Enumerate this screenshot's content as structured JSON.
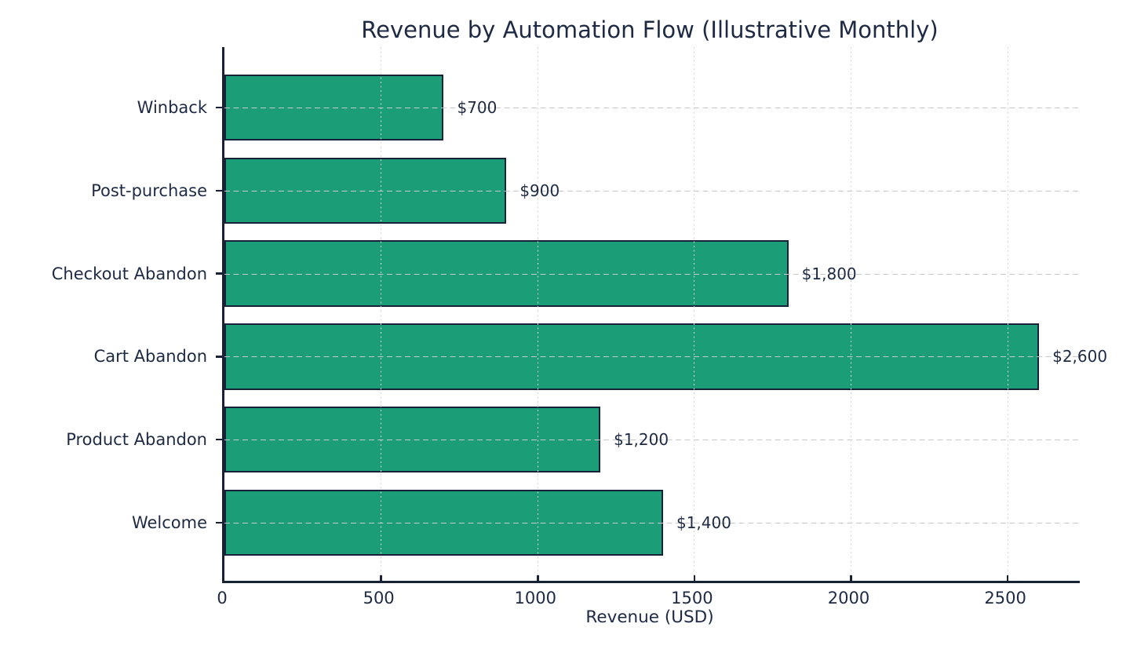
{
  "chart_data": {
    "type": "bar",
    "orientation": "horizontal",
    "title": "Revenue by Automation Flow (Illustrative Monthly)",
    "xlabel": "Revenue (USD)",
    "ylabel": "",
    "categories_top_to_bottom": [
      "Winback",
      "Post-purchase",
      "Checkout Abandon",
      "Cart Abandon",
      "Product Abandon",
      "Welcome"
    ],
    "values": [
      700,
      900,
      1800,
      2600,
      1200,
      1400
    ],
    "value_labels": [
      "$700",
      "$900",
      "$1,800",
      "$2,600",
      "$1,200",
      "$1,400"
    ],
    "x_ticks": [
      0,
      500,
      1000,
      1500,
      2000,
      2500
    ],
    "x_tick_labels": [
      "0",
      "500",
      "1000",
      "1500",
      "2000",
      "2500"
    ],
    "xlim": [
      0,
      2730
    ],
    "grid": {
      "horizontal_style": "dashed",
      "vertical_style": "dotted",
      "grid_above_bars": true
    },
    "legend": "none",
    "colors": {
      "bar_fill": "#1b9e77",
      "bar_edge": "#172138",
      "text": "#1e2a44",
      "grid_horizontal": "#c9c9c9",
      "grid_vertical": "#dadada",
      "background": "#ffffff"
    }
  }
}
